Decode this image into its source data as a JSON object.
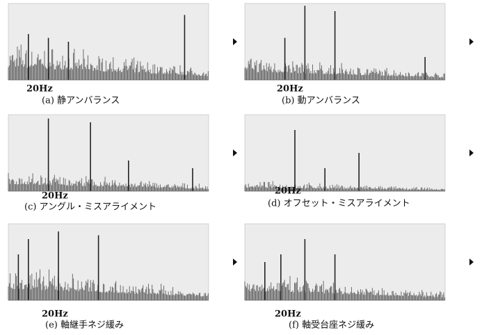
{
  "panels": [
    {
      "marker": "20Hz",
      "caption": "(a)  静アンバランス"
    },
    {
      "marker": "20Hz",
      "caption": "(b)  動アンバランス"
    },
    {
      "marker": "20Hz",
      "caption": "(c)  アングル・ミスアライメント"
    },
    {
      "marker": "20Hz",
      "caption": "(d)  オフセット・ミスアライメント"
    },
    {
      "marker": "20Hz",
      "caption": "(e)  軸継手ネジ緩み"
    },
    {
      "marker": "20Hz",
      "caption": "(f)  軸受台座ネジ緩み"
    }
  ]
}
